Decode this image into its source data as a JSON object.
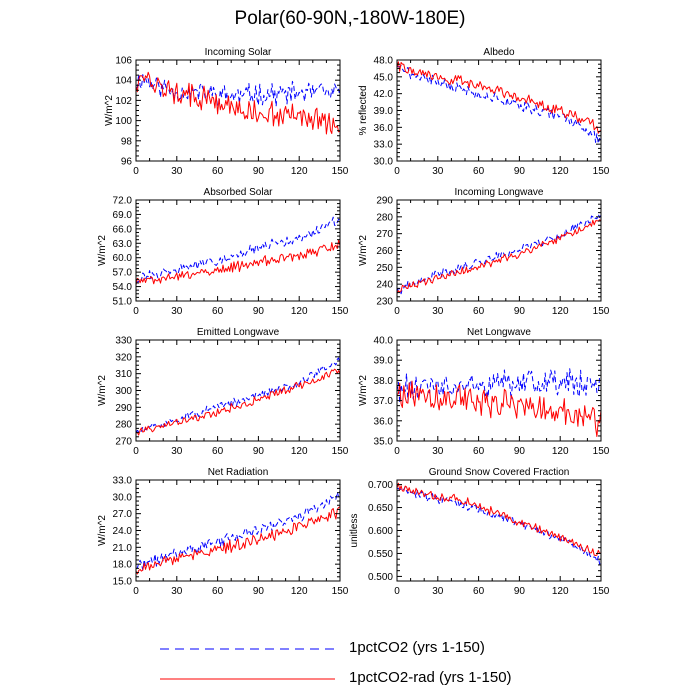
{
  "figure": {
    "title": "Polar(60-90N,-180W-180E)"
  },
  "legend": {
    "items": [
      {
        "label": "1pctCO2 (yrs 1-150)",
        "color": "#0000ff",
        "style": "dashed"
      },
      {
        "label": "1pctCO2-rad (yrs 1-150)",
        "color": "#ff0000",
        "style": "solid"
      }
    ]
  },
  "chart_data": [
    {
      "type": "line",
      "title": "Incoming Solar",
      "xlabel": "",
      "ylabel": "W/m^2",
      "xlim": [
        0,
        150
      ],
      "ylim": [
        96,
        106
      ],
      "xticks": [
        0,
        30,
        60,
        90,
        120,
        150
      ],
      "yticks": [
        96,
        98,
        100,
        102,
        104,
        106
      ],
      "ydecimals": 0,
      "series": [
        {
          "color": "#0000ff",
          "style": "dashed",
          "anchors": [
            [
              0,
              103.8
            ],
            [
              5,
              104.2
            ],
            [
              15,
              103.5
            ],
            [
              30,
              102.8
            ],
            [
              45,
              102.8
            ],
            [
              60,
              102.6
            ],
            [
              75,
              102.4
            ],
            [
              90,
              102.7
            ],
            [
              105,
              102.6
            ],
            [
              120,
              102.7
            ],
            [
              135,
              102.8
            ],
            [
              150,
              102.5
            ]
          ],
          "amp": 0.9,
          "seed": 11
        },
        {
          "color": "#ff0000",
          "style": "solid",
          "anchors": [
            [
              0,
              104.0
            ],
            [
              5,
              104.5
            ],
            [
              15,
              103.3
            ],
            [
              30,
              102.8
            ],
            [
              45,
              102.2
            ],
            [
              60,
              101.8
            ],
            [
              75,
              101.0
            ],
            [
              90,
              100.8
            ],
            [
              105,
              100.6
            ],
            [
              120,
              100.4
            ],
            [
              135,
              100.0
            ],
            [
              150,
              99.0
            ]
          ],
          "amp": 1.0,
          "seed": 12
        }
      ]
    },
    {
      "type": "line",
      "title": "Albedo",
      "xlabel": "",
      "ylabel": "% reflected",
      "xlim": [
        0,
        150
      ],
      "ylim": [
        30,
        48
      ],
      "xticks": [
        0,
        30,
        60,
        90,
        120,
        150
      ],
      "yticks": [
        30.0,
        33.0,
        36.0,
        39.0,
        42.0,
        45.0,
        48.0
      ],
      "ydecimals": 1,
      "series": [
        {
          "color": "#0000ff",
          "style": "dashed",
          "anchors": [
            [
              0,
              47.5
            ],
            [
              10,
              45.5
            ],
            [
              30,
              44.0
            ],
            [
              60,
              42.0
            ],
            [
              90,
              40.0
            ],
            [
              120,
              38.0
            ],
            [
              140,
              35.5
            ],
            [
              150,
              33.5
            ]
          ],
          "amp": 0.8,
          "seed": 21
        },
        {
          "color": "#ff0000",
          "style": "solid",
          "anchors": [
            [
              0,
              47.2
            ],
            [
              10,
              46.0
            ],
            [
              30,
              45.0
            ],
            [
              60,
              43.5
            ],
            [
              90,
              41.5
            ],
            [
              120,
              39.0
            ],
            [
              140,
              37.0
            ],
            [
              150,
              35.5
            ]
          ],
          "amp": 0.8,
          "seed": 22
        }
      ]
    },
    {
      "type": "line",
      "title": "Absorbed Solar",
      "xlabel": "",
      "ylabel": "W/m^2",
      "xlim": [
        0,
        150
      ],
      "ylim": [
        51,
        72
      ],
      "xticks": [
        0,
        30,
        60,
        90,
        120,
        150
      ],
      "yticks": [
        51.0,
        54.0,
        57.0,
        60.0,
        63.0,
        66.0,
        69.0,
        72.0
      ],
      "ydecimals": 1,
      "series": [
        {
          "color": "#0000ff",
          "style": "dashed",
          "anchors": [
            [
              0,
              55.5
            ],
            [
              30,
              57.5
            ],
            [
              60,
              59.5
            ],
            [
              90,
              62.0
            ],
            [
              120,
              64.0
            ],
            [
              150,
              68.0
            ]
          ],
          "amp": 0.9,
          "seed": 31
        },
        {
          "color": "#ff0000",
          "style": "solid",
          "anchors": [
            [
              0,
              55.0
            ],
            [
              30,
              56.0
            ],
            [
              60,
              57.5
            ],
            [
              90,
              59.0
            ],
            [
              120,
              60.5
            ],
            [
              150,
              62.5
            ]
          ],
          "amp": 0.9,
          "seed": 32
        }
      ]
    },
    {
      "type": "line",
      "title": "Incoming Longwave",
      "xlabel": "",
      "ylabel": "W/m^2",
      "xlim": [
        0,
        150
      ],
      "ylim": [
        230,
        290
      ],
      "xticks": [
        0,
        30,
        60,
        90,
        120,
        150
      ],
      "yticks": [
        230,
        240,
        250,
        260,
        270,
        280,
        290
      ],
      "ydecimals": 0,
      "series": [
        {
          "color": "#0000ff",
          "style": "dashed",
          "anchors": [
            [
              0,
              236
            ],
            [
              30,
              246
            ],
            [
              60,
              253
            ],
            [
              90,
              261
            ],
            [
              120,
              269
            ],
            [
              150,
              282
            ]
          ],
          "amp": 2.2,
          "seed": 41
        },
        {
          "color": "#ff0000",
          "style": "solid",
          "anchors": [
            [
              0,
              236
            ],
            [
              30,
              244
            ],
            [
              60,
              250
            ],
            [
              90,
              258
            ],
            [
              120,
              267
            ],
            [
              150,
              278
            ]
          ],
          "amp": 2.0,
          "seed": 42
        }
      ]
    },
    {
      "type": "line",
      "title": "Emitted Longwave",
      "xlabel": "",
      "ylabel": "W/m^2",
      "xlim": [
        0,
        150
      ],
      "ylim": [
        270,
        330
      ],
      "xticks": [
        0,
        30,
        60,
        90,
        120,
        150
      ],
      "yticks": [
        270,
        280,
        290,
        300,
        310,
        320,
        330
      ],
      "ydecimals": 0,
      "series": [
        {
          "color": "#0000ff",
          "style": "dashed",
          "anchors": [
            [
              0,
              275
            ],
            [
              30,
              283
            ],
            [
              60,
              290
            ],
            [
              90,
              297
            ],
            [
              120,
              305
            ],
            [
              150,
              318
            ]
          ],
          "amp": 2.0,
          "seed": 51
        },
        {
          "color": "#ff0000",
          "style": "solid",
          "anchors": [
            [
              0,
              275
            ],
            [
              30,
              281
            ],
            [
              60,
              287
            ],
            [
              90,
              295
            ],
            [
              120,
              303
            ],
            [
              150,
              312
            ]
          ],
          "amp": 2.0,
          "seed": 52
        }
      ]
    },
    {
      "type": "line",
      "title": "Net Longwave",
      "xlabel": "",
      "ylabel": "W/m^2",
      "xlim": [
        0,
        150
      ],
      "ylim": [
        35,
        40
      ],
      "xticks": [
        0,
        30,
        60,
        90,
        120,
        150
      ],
      "yticks": [
        35.0,
        36.0,
        37.0,
        38.0,
        39.0,
        40.0
      ],
      "ydecimals": 1,
      "series": [
        {
          "color": "#0000ff",
          "style": "dashed",
          "anchors": [
            [
              0,
              37.6
            ],
            [
              30,
              37.6
            ],
            [
              60,
              37.7
            ],
            [
              90,
              37.8
            ],
            [
              120,
              37.9
            ],
            [
              150,
              37.8
            ]
          ],
          "amp": 0.6,
          "seed": 61
        },
        {
          "color": "#ff0000",
          "style": "solid",
          "anchors": [
            [
              0,
              37.4
            ],
            [
              30,
              37.2
            ],
            [
              60,
              37.0
            ],
            [
              90,
              36.8
            ],
            [
              120,
              36.5
            ],
            [
              150,
              36.0
            ]
          ],
          "amp": 0.6,
          "seed": 62
        }
      ]
    },
    {
      "type": "line",
      "title": "Net Radiation",
      "xlabel": "",
      "ylabel": "W/m^2",
      "xlim": [
        0,
        150
      ],
      "ylim": [
        15,
        33
      ],
      "xticks": [
        0,
        30,
        60,
        90,
        120,
        150
      ],
      "yticks": [
        15.0,
        18.0,
        21.0,
        24.0,
        27.0,
        30.0,
        33.0
      ],
      "ydecimals": 1,
      "series": [
        {
          "color": "#0000ff",
          "style": "dashed",
          "anchors": [
            [
              0,
              17.5
            ],
            [
              30,
              20.0
            ],
            [
              60,
              22.0
            ],
            [
              90,
              24.0
            ],
            [
              120,
              26.5
            ],
            [
              150,
              30.5
            ]
          ],
          "amp": 0.9,
          "seed": 71
        },
        {
          "color": "#ff0000",
          "style": "solid",
          "anchors": [
            [
              0,
              17.0
            ],
            [
              30,
              19.0
            ],
            [
              60,
              20.5
            ],
            [
              90,
              22.5
            ],
            [
              120,
              24.5
            ],
            [
              150,
              27.5
            ]
          ],
          "amp": 0.9,
          "seed": 72
        }
      ]
    },
    {
      "type": "line",
      "title": "Ground Snow Covered Fraction",
      "xlabel": "",
      "ylabel": "unitless",
      "xlim": [
        0,
        150
      ],
      "ylim": [
        0.49,
        0.71
      ],
      "xticks": [
        0,
        30,
        60,
        90,
        120,
        150
      ],
      "yticks": [
        0.5,
        0.55,
        0.6,
        0.65,
        0.7
      ],
      "ydecimals": 3,
      "series": [
        {
          "color": "#0000ff",
          "style": "dashed",
          "anchors": [
            [
              0,
              0.695
            ],
            [
              20,
              0.675
            ],
            [
              50,
              0.655
            ],
            [
              80,
              0.625
            ],
            [
              110,
              0.595
            ],
            [
              130,
              0.57
            ],
            [
              150,
              0.53
            ]
          ],
          "amp": 0.008,
          "seed": 81
        },
        {
          "color": "#ff0000",
          "style": "solid",
          "anchors": [
            [
              0,
              0.695
            ],
            [
              20,
              0.68
            ],
            [
              50,
              0.665
            ],
            [
              80,
              0.63
            ],
            [
              110,
              0.595
            ],
            [
              130,
              0.575
            ],
            [
              150,
              0.545
            ]
          ],
          "amp": 0.008,
          "seed": 82
        }
      ]
    }
  ]
}
